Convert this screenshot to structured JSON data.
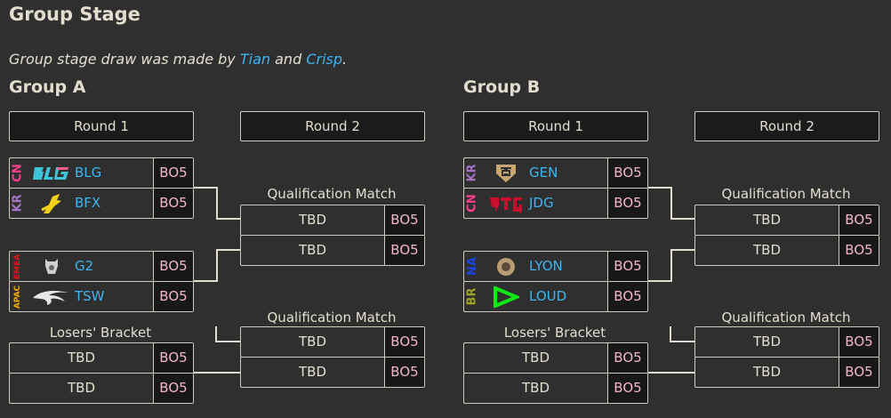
{
  "title": "Group Stage",
  "note": {
    "prefix": "Group stage draw was made by ",
    "link1": "Tian",
    "mid": " and ",
    "link2": "Crisp",
    "suffix": "."
  },
  "colors": {
    "background": "#2f2f2f",
    "team_link": "#3fb4ee",
    "bo_text": "#f2b6c6",
    "border": "#cfcbbd"
  },
  "groups": [
    {
      "name": "Group A",
      "round1": "Round 1",
      "round2": "Round 2",
      "matches": [
        [
          {
            "region": "CN",
            "region_color": "#ff3f8e",
            "logo": "blg-logo",
            "team": "BLG",
            "bo": "BO5"
          },
          {
            "region": "KR",
            "region_color": "#a574c4",
            "logo": "bfx-logo",
            "team": "BFX",
            "bo": "BO5"
          }
        ],
        [
          {
            "region": "EMEA",
            "region_color": "#e0161e",
            "logo": "g2-logo",
            "team": "G2",
            "bo": "BO5"
          },
          {
            "region": "APAC",
            "region_color": "#f0a800",
            "logo": "tsw-logo",
            "team": "TSW",
            "bo": "BO5"
          }
        ]
      ],
      "losers_label": "Losers' Bracket",
      "losers": [
        {
          "team": "TBD",
          "bo": "BO5"
        },
        {
          "team": "TBD",
          "bo": "BO5"
        }
      ],
      "qual_label": "Qualification Match",
      "qual1": [
        {
          "team": "TBD",
          "bo": "BO5"
        },
        {
          "team": "TBD",
          "bo": "BO5"
        }
      ],
      "qual2": [
        {
          "team": "TBD",
          "bo": "BO5"
        },
        {
          "team": "TBD",
          "bo": "BO5"
        }
      ]
    },
    {
      "name": "Group B",
      "round1": "Round 1",
      "round2": "Round 2",
      "matches": [
        [
          {
            "region": "KR",
            "region_color": "#a574c4",
            "logo": "gen-logo",
            "team": "GEN",
            "bo": "BO5"
          },
          {
            "region": "CN",
            "region_color": "#ff3f8e",
            "logo": "jdg-logo",
            "team": "JDG",
            "bo": "BO5"
          }
        ],
        [
          {
            "region": "NA",
            "region_color": "#1a44e6",
            "logo": "lyon-logo",
            "team": "LYON",
            "bo": "BO5"
          },
          {
            "region": "BR",
            "region_color": "#9ea12a",
            "logo": "loud-logo",
            "team": "LOUD",
            "bo": "BO5"
          }
        ]
      ],
      "losers_label": "Losers' Bracket",
      "losers": [
        {
          "team": "TBD",
          "bo": "BO5"
        },
        {
          "team": "TBD",
          "bo": "BO5"
        }
      ],
      "qual_label": "Qualification Match",
      "qual1": [
        {
          "team": "TBD",
          "bo": "BO5"
        },
        {
          "team": "TBD",
          "bo": "BO5"
        }
      ],
      "qual2": [
        {
          "team": "TBD",
          "bo": "BO5"
        },
        {
          "team": "TBD",
          "bo": "BO5"
        }
      ]
    }
  ]
}
